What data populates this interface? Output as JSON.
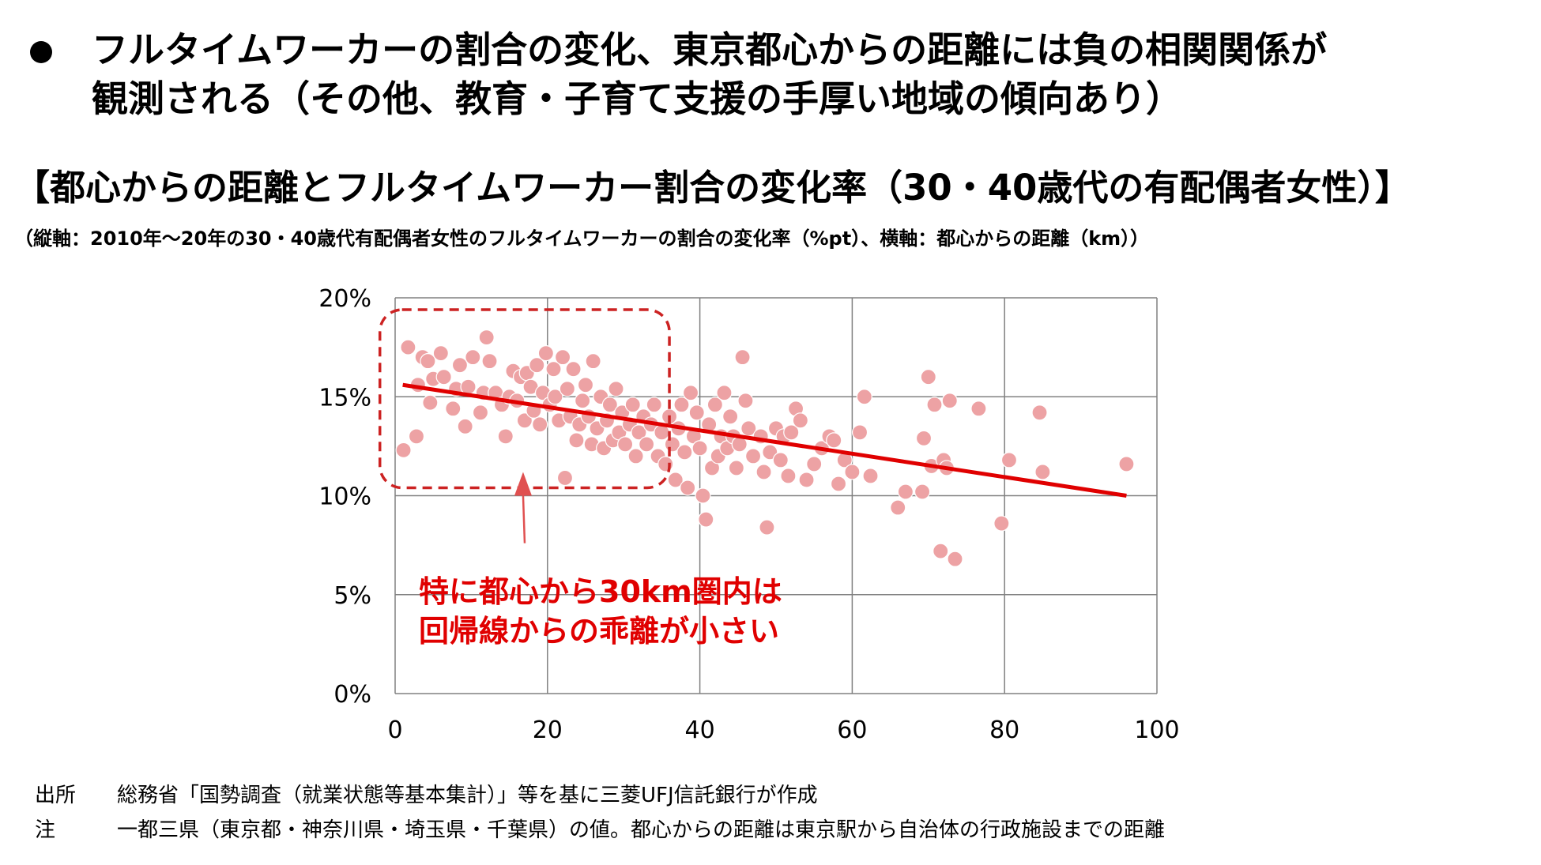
{
  "bullet": {
    "line1": "フルタイムワーカーの割合の変化、東京都心からの距離には負の相関関係が",
    "line2": "観測される（その他、教育・子育て支援の手厚い地域の傾向あり）"
  },
  "section_title": "【都心からの距離とフルタイムワーカー割合の変化率（30・40歳代の有配偶者女性）】",
  "axis_note": "（縦軸：2010年～20年の30・40歳代有配偶者女性のフルタイムワーカーの割合の変化率（%pt）、横軸：都心からの距離（km））",
  "annotation": {
    "line1": "特に都心から30km圏内は",
    "line2": "回帰線からの乖離が小さい"
  },
  "footnotes": {
    "source_label": "出所",
    "source_text": "総務省「国勢調査（就業状態等基本集計）」等を基に三菱UFJ信託銀行が作成",
    "note_label": "注",
    "note_text": "一都三県（東京都・神奈川県・埼玉県・千葉県）の値。都心からの距離は東京駅から自治体の行政施設までの距離"
  },
  "colors": {
    "points": "#eda2a4",
    "regression": "#e00000",
    "annotation": "#e00000",
    "highlight_box": "#cc2222",
    "arrow": "#e05050",
    "grid": "#808080"
  },
  "chart_data": {
    "type": "scatter",
    "xlim": [
      0,
      100
    ],
    "ylim": [
      0,
      20
    ],
    "x_ticks": [
      0,
      20,
      40,
      60,
      80,
      100
    ],
    "y_ticks": [
      0,
      5,
      10,
      15,
      20
    ],
    "x_tick_labels": [
      "0",
      "20",
      "40",
      "60",
      "80",
      "100"
    ],
    "y_tick_labels": [
      "0%",
      "5%",
      "10%",
      "15%",
      "20%"
    ],
    "grid": true,
    "legend": "none",
    "regression_line": {
      "x": [
        1,
        96
      ],
      "y": [
        15.6,
        10.0
      ]
    },
    "highlight_region": {
      "x_range": [
        -2,
        36
      ],
      "y_range": [
        10.4,
        19.4
      ]
    },
    "points": [
      [
        1.1,
        12.3
      ],
      [
        1.7,
        17.5
      ],
      [
        2.8,
        13.0
      ],
      [
        3.0,
        15.6
      ],
      [
        3.6,
        17.0
      ],
      [
        4.3,
        16.8
      ],
      [
        4.6,
        14.7
      ],
      [
        5.0,
        15.9
      ],
      [
        6.0,
        17.2
      ],
      [
        6.4,
        16.0
      ],
      [
        7.6,
        14.4
      ],
      [
        8.0,
        15.4
      ],
      [
        8.5,
        16.6
      ],
      [
        9.2,
        13.5
      ],
      [
        9.6,
        15.5
      ],
      [
        10.2,
        17.0
      ],
      [
        11.2,
        14.2
      ],
      [
        11.6,
        15.2
      ],
      [
        12.0,
        18.0
      ],
      [
        12.4,
        16.8
      ],
      [
        13.2,
        15.2
      ],
      [
        14.0,
        14.6
      ],
      [
        14.5,
        13.0
      ],
      [
        15.0,
        15.0
      ],
      [
        15.5,
        16.3
      ],
      [
        16.0,
        14.8
      ],
      [
        16.5,
        16.0
      ],
      [
        17.0,
        13.8
      ],
      [
        17.3,
        16.2
      ],
      [
        17.8,
        15.5
      ],
      [
        18.2,
        14.3
      ],
      [
        18.6,
        16.6
      ],
      [
        19.0,
        13.6
      ],
      [
        19.4,
        15.2
      ],
      [
        19.8,
        17.2
      ],
      [
        20.3,
        14.6
      ],
      [
        20.8,
        16.4
      ],
      [
        21.0,
        15.0
      ],
      [
        21.5,
        13.8
      ],
      [
        22.0,
        17.0
      ],
      [
        22.3,
        10.9
      ],
      [
        22.6,
        15.4
      ],
      [
        23.0,
        14.0
      ],
      [
        23.4,
        16.4
      ],
      [
        23.8,
        12.8
      ],
      [
        24.2,
        13.6
      ],
      [
        24.6,
        14.8
      ],
      [
        25.0,
        15.6
      ],
      [
        25.4,
        14.0
      ],
      [
        25.8,
        12.6
      ],
      [
        26.0,
        16.8
      ],
      [
        26.5,
        13.4
      ],
      [
        27.0,
        15.0
      ],
      [
        27.4,
        12.4
      ],
      [
        27.8,
        13.8
      ],
      [
        28.2,
        14.6
      ],
      [
        28.6,
        12.8
      ],
      [
        29.0,
        15.4
      ],
      [
        29.4,
        13.2
      ],
      [
        29.8,
        14.2
      ],
      [
        30.2,
        12.6
      ],
      [
        30.8,
        13.6
      ],
      [
        31.2,
        14.6
      ],
      [
        31.6,
        12.0
      ],
      [
        32.0,
        13.2
      ],
      [
        32.6,
        14.0
      ],
      [
        33.0,
        12.6
      ],
      [
        33.6,
        13.6
      ],
      [
        34.0,
        14.6
      ],
      [
        34.5,
        12.0
      ],
      [
        35.0,
        13.2
      ],
      [
        35.5,
        11.6
      ],
      [
        36.0,
        14.0
      ],
      [
        36.4,
        12.6
      ],
      [
        36.8,
        10.8
      ],
      [
        37.2,
        13.4
      ],
      [
        37.6,
        14.6
      ],
      [
        38.0,
        12.2
      ],
      [
        38.4,
        10.4
      ],
      [
        38.8,
        15.2
      ],
      [
        39.2,
        13.0
      ],
      [
        39.6,
        14.2
      ],
      [
        40.0,
        12.4
      ],
      [
        40.4,
        10.0
      ],
      [
        40.8,
        8.8
      ],
      [
        41.2,
        13.6
      ],
      [
        41.6,
        11.4
      ],
      [
        42.0,
        14.6
      ],
      [
        42.4,
        12.0
      ],
      [
        42.8,
        13.0
      ],
      [
        43.2,
        15.2
      ],
      [
        43.6,
        12.4
      ],
      [
        44.0,
        14.0
      ],
      [
        44.4,
        13.0
      ],
      [
        44.8,
        11.4
      ],
      [
        45.2,
        12.6
      ],
      [
        45.6,
        17.0
      ],
      [
        46.0,
        14.8
      ],
      [
        46.4,
        13.4
      ],
      [
        47.0,
        12.0
      ],
      [
        48.0,
        13.0
      ],
      [
        48.4,
        11.2
      ],
      [
        48.8,
        8.4
      ],
      [
        49.2,
        12.2
      ],
      [
        50.0,
        13.4
      ],
      [
        50.6,
        11.8
      ],
      [
        51.0,
        13.0
      ],
      [
        51.6,
        11.0
      ],
      [
        52.0,
        13.2
      ],
      [
        52.6,
        14.4
      ],
      [
        53.2,
        13.8
      ],
      [
        54.0,
        10.8
      ],
      [
        55.0,
        11.6
      ],
      [
        56.0,
        12.4
      ],
      [
        57.0,
        13.0
      ],
      [
        57.6,
        12.8
      ],
      [
        58.2,
        10.6
      ],
      [
        59.0,
        11.8
      ],
      [
        60.0,
        11.2
      ],
      [
        61.0,
        13.2
      ],
      [
        61.6,
        15.0
      ],
      [
        62.4,
        11.0
      ],
      [
        66.0,
        9.4
      ],
      [
        67.0,
        10.2
      ],
      [
        69.2,
        10.2
      ],
      [
        69.4,
        12.9
      ],
      [
        70.0,
        16.0
      ],
      [
        70.4,
        11.5
      ],
      [
        70.8,
        14.6
      ],
      [
        71.6,
        7.2
      ],
      [
        72.0,
        11.8
      ],
      [
        72.4,
        11.4
      ],
      [
        72.8,
        14.8
      ],
      [
        73.5,
        6.8
      ],
      [
        76.6,
        14.4
      ],
      [
        79.6,
        8.6
      ],
      [
        80.6,
        11.8
      ],
      [
        84.6,
        14.2
      ],
      [
        85.0,
        11.2
      ],
      [
        96.0,
        11.6
      ]
    ]
  }
}
